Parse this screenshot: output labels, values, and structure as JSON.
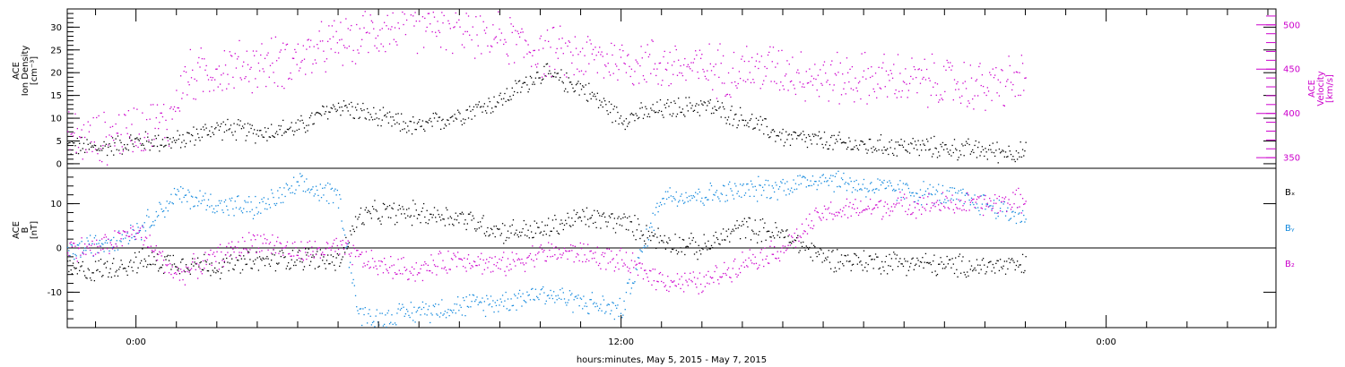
{
  "colors": {
    "black": "#000000",
    "magenta": "#cc00cc",
    "blue": "#1188dd",
    "frame": "#000000"
  },
  "xaxis": {
    "title": "hours:minutes, May  5, 2015 - May  7, 2015",
    "ticks": [
      {
        "label": "0:00",
        "h": 0
      },
      {
        "label": "12:00",
        "h": 12
      },
      {
        "label": "0:00",
        "h": 24
      }
    ],
    "range_hours": [
      -1.7,
      28.2
    ]
  },
  "chart_data": [
    {
      "type": "scatter",
      "panel": "top",
      "ylabel_left": [
        "ACE",
        "Ion Density",
        "[cm⁻³]"
      ],
      "ylabel_right": [
        "ACE",
        "Velocity",
        "[km/s]"
      ],
      "ylim_left": [
        -1,
        34
      ],
      "ylim_right": [
        338,
        518
      ],
      "yticks_left": [
        "0",
        "5",
        "10",
        "15",
        "20",
        "25",
        "30"
      ],
      "yticks_right": [
        "350",
        "400",
        "450",
        "500"
      ],
      "series": [
        {
          "color": "black",
          "axis": "left",
          "x": [
            -1.7,
            -1,
            0,
            1,
            2,
            3,
            4,
            5,
            6,
            7,
            8,
            9,
            10,
            11,
            12,
            13,
            14,
            15,
            16,
            17,
            18,
            19,
            20,
            21,
            22,
            22
          ],
          "y": [
            4,
            3.5,
            5,
            5,
            8,
            7,
            8,
            13,
            10,
            8,
            11,
            14,
            20,
            17,
            10,
            12,
            13,
            10,
            6,
            5,
            4,
            4,
            3.5,
            3,
            2.5,
            2.5
          ]
        },
        {
          "color": "magenta",
          "axis": "right",
          "x": [
            -1.7,
            -1,
            0,
            0.8,
            1.2,
            2,
            3,
            4,
            5,
            6,
            7,
            8,
            9,
            10,
            11,
            12,
            13,
            14,
            15,
            16,
            17,
            18,
            19,
            20,
            21,
            21.5,
            22
          ],
          "y": [
            375,
            370,
            385,
            390,
            440,
            450,
            455,
            462,
            480,
            495,
            500,
            498,
            488,
            470,
            465,
            460,
            456,
            450,
            450,
            452,
            440,
            440,
            438,
            435,
            430,
            435,
            440
          ]
        }
      ]
    },
    {
      "type": "scatter",
      "panel": "bottom",
      "ylabel_left": [
        "ACE",
        "B",
        "[nT]"
      ],
      "ylim": [
        -18,
        18
      ],
      "yticks": [
        "-10",
        "0",
        "10"
      ],
      "zero_line": true,
      "legend": [
        "Bₓ",
        "Bᵧ",
        "B₂"
      ],
      "series": [
        {
          "name": "Bx",
          "color": "black",
          "x": [
            -1.7,
            -1,
            0,
            1,
            2,
            3,
            4,
            5,
            5.5,
            6,
            7,
            8,
            9,
            10,
            11,
            12,
            13,
            14,
            15,
            16,
            17,
            18,
            19,
            20,
            21,
            22
          ],
          "y": [
            -5,
            -5,
            -3,
            -3,
            -4,
            -3,
            -2,
            -3,
            7,
            8,
            8,
            7,
            4,
            4,
            7,
            6,
            2,
            0,
            5,
            3,
            -2,
            -3,
            -3,
            -4,
            -4,
            -4
          ]
        },
        {
          "name": "By",
          "color": "blue",
          "x": [
            -1.7,
            -1,
            0,
            1,
            2,
            3,
            4,
            5,
            5.5,
            6,
            7,
            8,
            9,
            10,
            11,
            12,
            13,
            14,
            15,
            16,
            17,
            18,
            19,
            20,
            21,
            22
          ],
          "y": [
            -1,
            1,
            4,
            12,
            10,
            9,
            14,
            12,
            -15,
            -16,
            -14,
            -13,
            -12,
            -10,
            -12,
            -14,
            12,
            12,
            13,
            14,
            16,
            14,
            13,
            12,
            10,
            7
          ]
        },
        {
          "name": "Bz",
          "color": "magenta",
          "x": [
            -1.7,
            -1,
            0,
            1,
            2,
            3,
            4,
            5,
            5.5,
            6,
            7,
            8,
            9,
            10,
            11,
            12,
            13,
            14,
            15,
            16,
            17,
            18,
            19,
            20,
            21,
            22
          ],
          "y": [
            0,
            0,
            4,
            -6,
            -2,
            2,
            -1,
            0,
            -2,
            -4,
            -5,
            -2,
            -4,
            -1,
            -1,
            -3,
            -7,
            -8,
            -3,
            0,
            8,
            9,
            10,
            10,
            10,
            11
          ]
        }
      ]
    }
  ]
}
